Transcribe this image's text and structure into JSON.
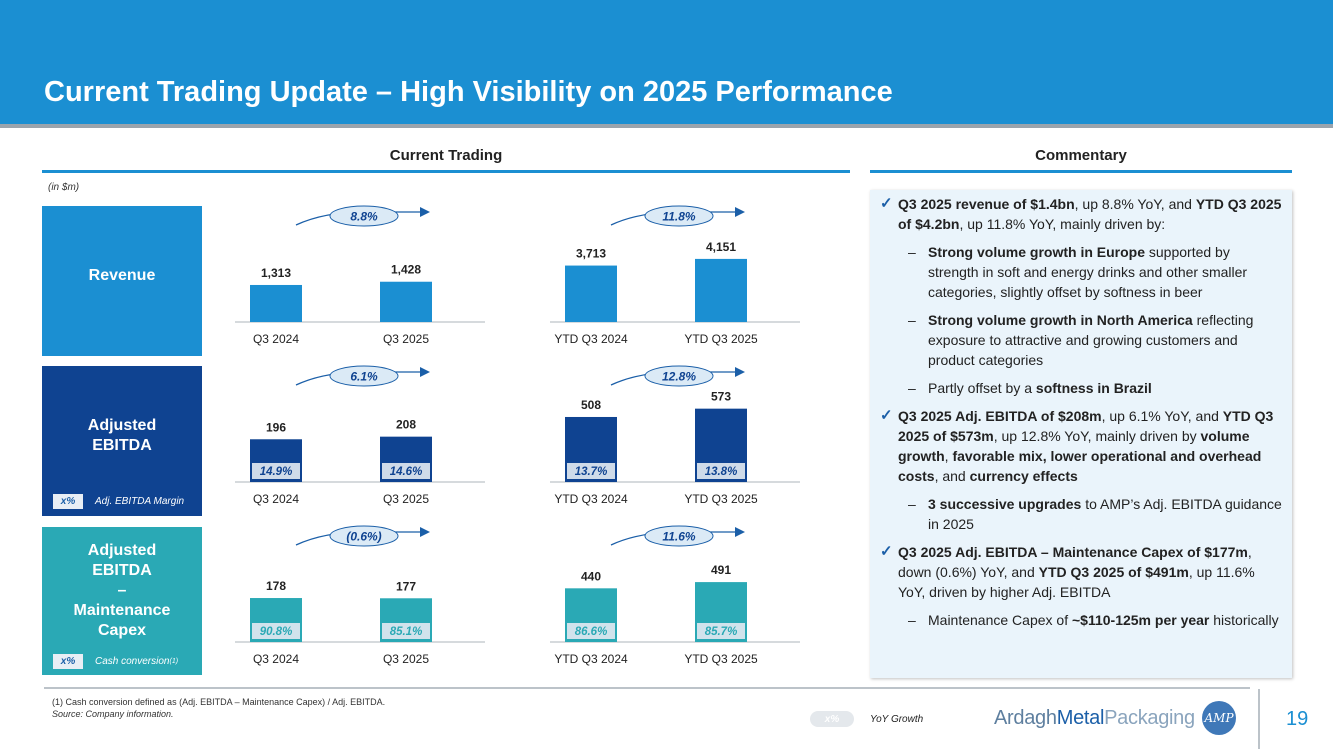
{
  "header": {
    "title": "Current Trading Update – High Visibility on 2025 Performance"
  },
  "current_trading": {
    "title": "Current Trading",
    "units": "(in $m)"
  },
  "commentary": {
    "title": "Commentary",
    "b1": {
      "t1": "Q3 2025 revenue of $1.4bn",
      "t2": ", up 8.8% YoY, and ",
      "t3": "YTD Q3 2025 of $4.2bn",
      "t4": ", up 11.8% YoY, mainly driven by:"
    },
    "s1": {
      "t1": "Strong volume growth in Europe",
      "t2": " supported by strength in soft and energy drinks and other smaller categories, slightly offset by softness in beer"
    },
    "s2": {
      "t1": "Strong volume growth in North America",
      "t2": " reflecting exposure to attractive and growing customers and product categories"
    },
    "s3": {
      "t1": "Partly offset by a ",
      "t2": "softness in Brazil"
    },
    "b2": {
      "t1": "Q3 2025 Adj. EBITDA of $208m",
      "t2": ", up 6.1% YoY, and ",
      "t3": "YTD Q3 2025 of $573m",
      "t4": ", up 12.8% YoY, mainly driven by ",
      "t5": "volume growth",
      "t6": ", ",
      "t7": "favorable mix, lower operational and overhead costs",
      "t8": ", and ",
      "t9": "currency effects"
    },
    "s4": {
      "t1": "3 successive upgrades",
      "t2": " to AMP’s Adj. EBITDA guidance in 2025"
    },
    "b3": {
      "t1": "Q3 2025 Adj. EBITDA – Maintenance Capex of $177m",
      "t2": ", down (0.6%) YoY, and ",
      "t3": "YTD Q3 2025 of $491m",
      "t4": ", up 11.6% YoY, driven by higher Adj. EBITDA"
    },
    "s5": {
      "t1": "Maintenance Capex of ",
      "t2": "~$110-125m per year",
      "t3": " historically"
    }
  },
  "rows": {
    "revenue": {
      "label": "Revenue"
    },
    "ebitda": {
      "label_1": "Adjusted",
      "label_2": "EBITDA",
      "legend_chip": "x%",
      "legend_text": "Adj. EBITDA Margin"
    },
    "capex": {
      "label_1": "Adjusted",
      "label_2": "EBITDA",
      "label_3": "–",
      "label_4": "Maintenance",
      "label_5": "Capex",
      "legend_chip": "x%",
      "legend_text": "Cash conversion",
      "legend_sup": "(1)"
    }
  },
  "footer": {
    "footnote": "(1)    Cash conversion defined as (Adj. EBITDA – Maintenance Capex) / Adj. EBITDA.",
    "source": "Source: Company information.",
    "legend_chip": "x%",
    "legend_text": "YoY Growth",
    "logo_1": "Ardagh",
    "logo_2": "Metal",
    "logo_3": "Packaging",
    "logo_mark": "AMP",
    "page": "19"
  },
  "colors": {
    "revenue": "#1b8fd2",
    "ebitda": "#0f4391",
    "capex": "#2aa9b5"
  },
  "chart_data": [
    {
      "type": "bar",
      "title": "Revenue",
      "categories": [
        "Q3 2024",
        "Q3 2025"
      ],
      "values": [
        1313,
        1428
      ],
      "value_labels": [
        "1,313",
        "1,428"
      ],
      "growth": "8.8%"
    },
    {
      "type": "bar",
      "title": "Revenue",
      "categories": [
        "YTD Q3 2024",
        "YTD Q3 2025"
      ],
      "values": [
        3713,
        4151
      ],
      "value_labels": [
        "3,713",
        "4,151"
      ],
      "growth": "11.8%"
    },
    {
      "type": "bar",
      "title": "Adjusted EBITDA",
      "categories": [
        "Q3 2024",
        "Q3 2025"
      ],
      "values": [
        196,
        208
      ],
      "value_labels": [
        "196",
        "208"
      ],
      "margins": [
        "14.9%",
        "14.6%"
      ],
      "growth": "6.1%"
    },
    {
      "type": "bar",
      "title": "Adjusted EBITDA",
      "categories": [
        "YTD Q3 2024",
        "YTD Q3 2025"
      ],
      "values": [
        508,
        573
      ],
      "value_labels": [
        "508",
        "573"
      ],
      "margins": [
        "13.7%",
        "13.8%"
      ],
      "growth": "12.8%"
    },
    {
      "type": "bar",
      "title": "Adjusted EBITDA – Maintenance Capex",
      "categories": [
        "Q3 2024",
        "Q3 2025"
      ],
      "values": [
        178,
        177
      ],
      "value_labels": [
        "178",
        "177"
      ],
      "margins": [
        "90.8%",
        "85.1%"
      ],
      "growth": "(0.6%)"
    },
    {
      "type": "bar",
      "title": "Adjusted EBITDA – Maintenance Capex",
      "categories": [
        "YTD Q3 2024",
        "YTD Q3 2025"
      ],
      "values": [
        440,
        491
      ],
      "value_labels": [
        "440",
        "491"
      ],
      "margins": [
        "86.6%",
        "85.7%"
      ],
      "growth": "11.6%"
    }
  ]
}
